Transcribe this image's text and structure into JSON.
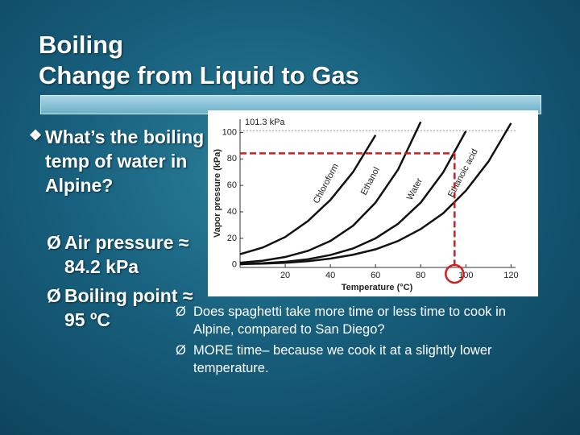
{
  "slide": {
    "title": [
      "Boiling",
      "Change from Liquid to Gas"
    ],
    "question": "What’s the boiling temp of water in Alpine?",
    "points": [
      "Air pressure ≈ 84.2 kPa",
      "Boiling point ≈ 95 ºC"
    ],
    "notes": [
      "Does spaghetti take more time or less time to cook in Alpine, compared to San Diego?",
      "MORE time– because we cook it at a slightly lower temperature."
    ]
  },
  "chart_data": {
    "type": "line",
    "x_label": "Temperature (°C)",
    "y_label": "Vapor pressure (kPa)",
    "x": [
      0,
      10,
      20,
      30,
      40,
      50,
      60,
      70,
      80,
      90,
      100,
      110,
      120
    ],
    "series": [
      {
        "name": "Chloroform",
        "color": "#111111",
        "values": [
          8,
          13,
          21,
          33,
          49,
          70,
          98,
          null,
          null,
          null,
          null,
          null,
          null
        ]
      },
      {
        "name": "Ethanol",
        "color": "#111111",
        "values": [
          1.6,
          3.1,
          5.9,
          10.5,
          18,
          29.5,
          47,
          72,
          108,
          null,
          null,
          null,
          null
        ]
      },
      {
        "name": "Water",
        "color": "#111111",
        "values": [
          0.6,
          1.2,
          2.3,
          4.2,
          7.4,
          12.3,
          20,
          31,
          47,
          70,
          101,
          null,
          null
        ]
      },
      {
        "name": "Ethanoic acid",
        "color": "#111111",
        "values": [
          0.5,
          0.9,
          1.5,
          2.7,
          4.7,
          7.6,
          11.7,
          18,
          27,
          39,
          56,
          78,
          107
        ]
      }
    ],
    "xlim": [
      0,
      122
    ],
    "ylim": [
      -2,
      110
    ],
    "xticks": [
      20,
      40,
      60,
      80,
      100,
      120
    ],
    "yticks": [
      0,
      20,
      40,
      60,
      80,
      100
    ],
    "standard_pressure": {
      "value": 101.3,
      "label": "101.3 kPa"
    },
    "reference": {
      "pressure": 84.2,
      "temperature": 95,
      "color": "#cc1f1f"
    }
  }
}
